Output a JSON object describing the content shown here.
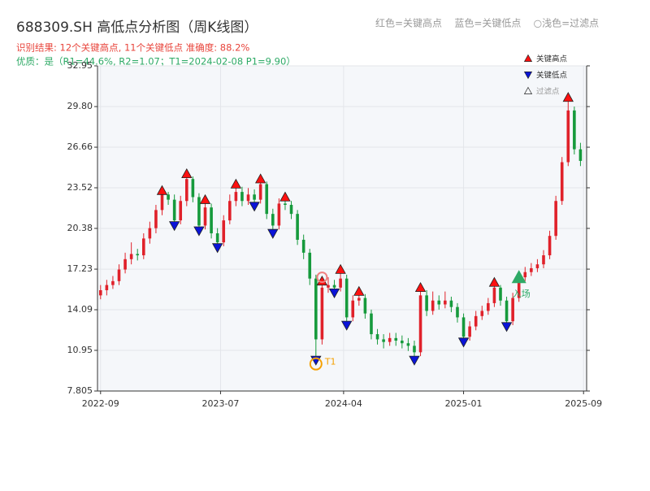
{
  "chart_data": {
    "type": "candlestick",
    "title": "688309.SH 高低点分析图（周K线图）",
    "subtitle": "识别结果: 12个关键高点, 11个关键低点  准确度: 88.2%",
    "quality_note": "优质：是（R1=44.6%, R2=1.07；T1=2024-02-08 P1=9.90）",
    "legend_note": "红色=关键高点    蓝色=关键低点    ○浅色=过滤点",
    "up_color": "#e0212a",
    "down_color": "#169a3c",
    "x": [
      0,
      2,
      4,
      6,
      8,
      10,
      12,
      14,
      16,
      18,
      20,
      22,
      24,
      26,
      28,
      30,
      32,
      34,
      36,
      38,
      40,
      42,
      44,
      46,
      48,
      50,
      52,
      54,
      56,
      58,
      60,
      62,
      64,
      66,
      68,
      70,
      72,
      74,
      76,
      78,
      80,
      82,
      84,
      86,
      88,
      90,
      92,
      94,
      96,
      98,
      100,
      102,
      104,
      106,
      108,
      110,
      112,
      114,
      116,
      118,
      120,
      122,
      124,
      126,
      128,
      130,
      132,
      134,
      136,
      138,
      140,
      142,
      144,
      146,
      148,
      150,
      152,
      154,
      156
    ],
    "open": [
      15.2,
      15.6,
      16.0,
      16.3,
      17.2,
      18.0,
      18.4,
      18.3,
      19.6,
      20.4,
      21.8,
      23.0,
      22.6,
      21.0,
      22.5,
      24.2,
      22.8,
      20.6,
      22.0,
      20.0,
      19.3,
      21.0,
      22.5,
      23.2,
      22.5,
      23.0,
      22.6,
      23.8,
      21.5,
      20.6,
      22.3,
      22.2,
      21.5,
      19.5,
      18.5,
      16.5,
      11.8,
      15.8,
      16.0,
      15.8,
      16.5,
      13.5,
      14.8,
      15.0,
      13.8,
      12.2,
      11.8,
      11.6,
      11.9,
      11.7,
      11.5,
      11.3,
      10.8,
      15.2,
      14.0,
      14.8,
      14.5,
      14.8,
      14.3,
      13.5,
      12.0,
      12.8,
      13.6,
      14.0,
      14.6,
      15.8,
      14.8,
      13.2,
      15.0,
      16.6,
      17.0,
      17.3,
      17.6,
      18.3,
      19.8,
      22.5,
      25.5,
      29.5,
      26.5
    ],
    "high": [
      16.0,
      16.4,
      16.7,
      17.6,
      18.5,
      19.3,
      18.8,
      20.0,
      20.9,
      22.2,
      23.3,
      23.2,
      23.0,
      22.9,
      24.6,
      24.4,
      23.1,
      22.6,
      22.3,
      20.4,
      21.4,
      23.0,
      23.8,
      23.6,
      23.5,
      23.4,
      24.2,
      24.0,
      21.9,
      22.7,
      22.8,
      22.5,
      21.8,
      19.9,
      18.8,
      16.8,
      16.3,
      16.6,
      16.4,
      17.2,
      16.8,
      15.2,
      15.5,
      15.3,
      14.1,
      12.6,
      12.2,
      12.3,
      12.3,
      12.1,
      11.9,
      11.7,
      15.8,
      15.6,
      15.5,
      15.2,
      15.5,
      15.1,
      14.6,
      13.8,
      13.2,
      14.0,
      14.4,
      15.0,
      16.2,
      16.0,
      15.1,
      15.4,
      17.0,
      17.4,
      17.7,
      18.0,
      18.7,
      20.2,
      22.9,
      25.9,
      30.5,
      29.8,
      27.0
    ],
    "low": [
      14.9,
      15.2,
      15.7,
      16.0,
      16.9,
      17.6,
      17.9,
      18.0,
      19.2,
      20.0,
      21.4,
      22.2,
      20.6,
      20.7,
      22.1,
      22.4,
      20.2,
      20.3,
      19.6,
      18.9,
      19.0,
      20.7,
      22.1,
      22.1,
      22.2,
      22.1,
      22.3,
      21.1,
      20.0,
      20.3,
      21.8,
      21.1,
      19.1,
      18.0,
      16.0,
      10.2,
      11.4,
      15.4,
      15.4,
      15.5,
      12.9,
      13.2,
      14.4,
      13.4,
      11.8,
      11.4,
      11.1,
      11.3,
      11.3,
      11.1,
      10.9,
      10.2,
      10.5,
      13.6,
      13.7,
      14.1,
      14.2,
      13.9,
      13.1,
      11.6,
      11.7,
      12.5,
      13.3,
      13.7,
      14.3,
      14.4,
      12.8,
      12.9,
      14.7,
      16.3,
      16.7,
      17.0,
      17.3,
      18.0,
      19.5,
      22.2,
      25.2,
      26.1,
      25.2
    ],
    "close": [
      15.6,
      16.0,
      16.3,
      17.2,
      18.0,
      18.4,
      18.3,
      19.6,
      20.4,
      21.8,
      23.0,
      22.6,
      21.0,
      22.5,
      24.2,
      22.8,
      20.6,
      22.0,
      20.0,
      19.3,
      21.0,
      22.5,
      23.2,
      22.5,
      23.0,
      22.6,
      23.8,
      21.5,
      20.6,
      22.3,
      22.2,
      21.5,
      19.5,
      18.5,
      16.5,
      11.8,
      15.8,
      16.0,
      15.8,
      16.5,
      13.5,
      14.8,
      15.0,
      13.8,
      12.2,
      11.8,
      11.6,
      11.9,
      11.7,
      11.5,
      11.3,
      10.8,
      15.2,
      14.0,
      14.8,
      14.5,
      14.8,
      14.3,
      13.5,
      12.0,
      12.8,
      13.6,
      14.0,
      14.6,
      15.8,
      14.8,
      13.2,
      15.0,
      16.6,
      17.0,
      17.3,
      17.6,
      18.3,
      19.8,
      22.5,
      25.5,
      29.5,
      26.5,
      25.6
    ],
    "markers": [
      {
        "name": "关键高点",
        "shape": "triangle-up",
        "color": "#ff1010",
        "x": [
          20,
          28,
          34,
          44,
          52,
          60,
          72,
          78,
          84,
          104,
          128,
          152
        ],
        "values": [
          23.3,
          24.6,
          22.6,
          23.8,
          24.2,
          22.8,
          16.3,
          17.2,
          15.5,
          15.8,
          16.2,
          30.5
        ]
      },
      {
        "name": "关键低点",
        "shape": "triangle-down",
        "color": "#0a14d8",
        "x": [
          24,
          32,
          38,
          50,
          56,
          70,
          76,
          80,
          102,
          118,
          132
        ],
        "values": [
          20.6,
          20.2,
          18.9,
          22.1,
          20.0,
          10.2,
          15.4,
          12.9,
          10.2,
          11.6,
          12.8
        ]
      },
      {
        "name": "过滤点",
        "shape": "circle",
        "color": "#f08080",
        "x": [
          72
        ],
        "values": [
          16.6
        ]
      }
    ],
    "annotations": [
      {
        "text": "T1",
        "x": 70,
        "value": 9.9,
        "color": "#f5a000"
      },
      {
        "text": "入场",
        "x": 136,
        "value": 16.6,
        "color": "#2eaa66"
      }
    ],
    "xlim": [
      -1,
      158
    ],
    "ylim": [
      7.805,
      32.95
    ],
    "xticks": [
      {
        "value": 0,
        "label": "2022-09"
      },
      {
        "value": 39,
        "label": "2023-07"
      },
      {
        "value": 79,
        "label": "2024-04"
      },
      {
        "value": 118,
        "label": "2025-01"
      },
      {
        "value": 157,
        "label": "2025-09"
      }
    ],
    "yticks": [
      7.805,
      10.95,
      14.09,
      17.23,
      20.38,
      23.52,
      26.66,
      {
        "value": 29.8,
        "label": "29.80"
      },
      32.95
    ],
    "grid": true,
    "legend": "upper right"
  }
}
